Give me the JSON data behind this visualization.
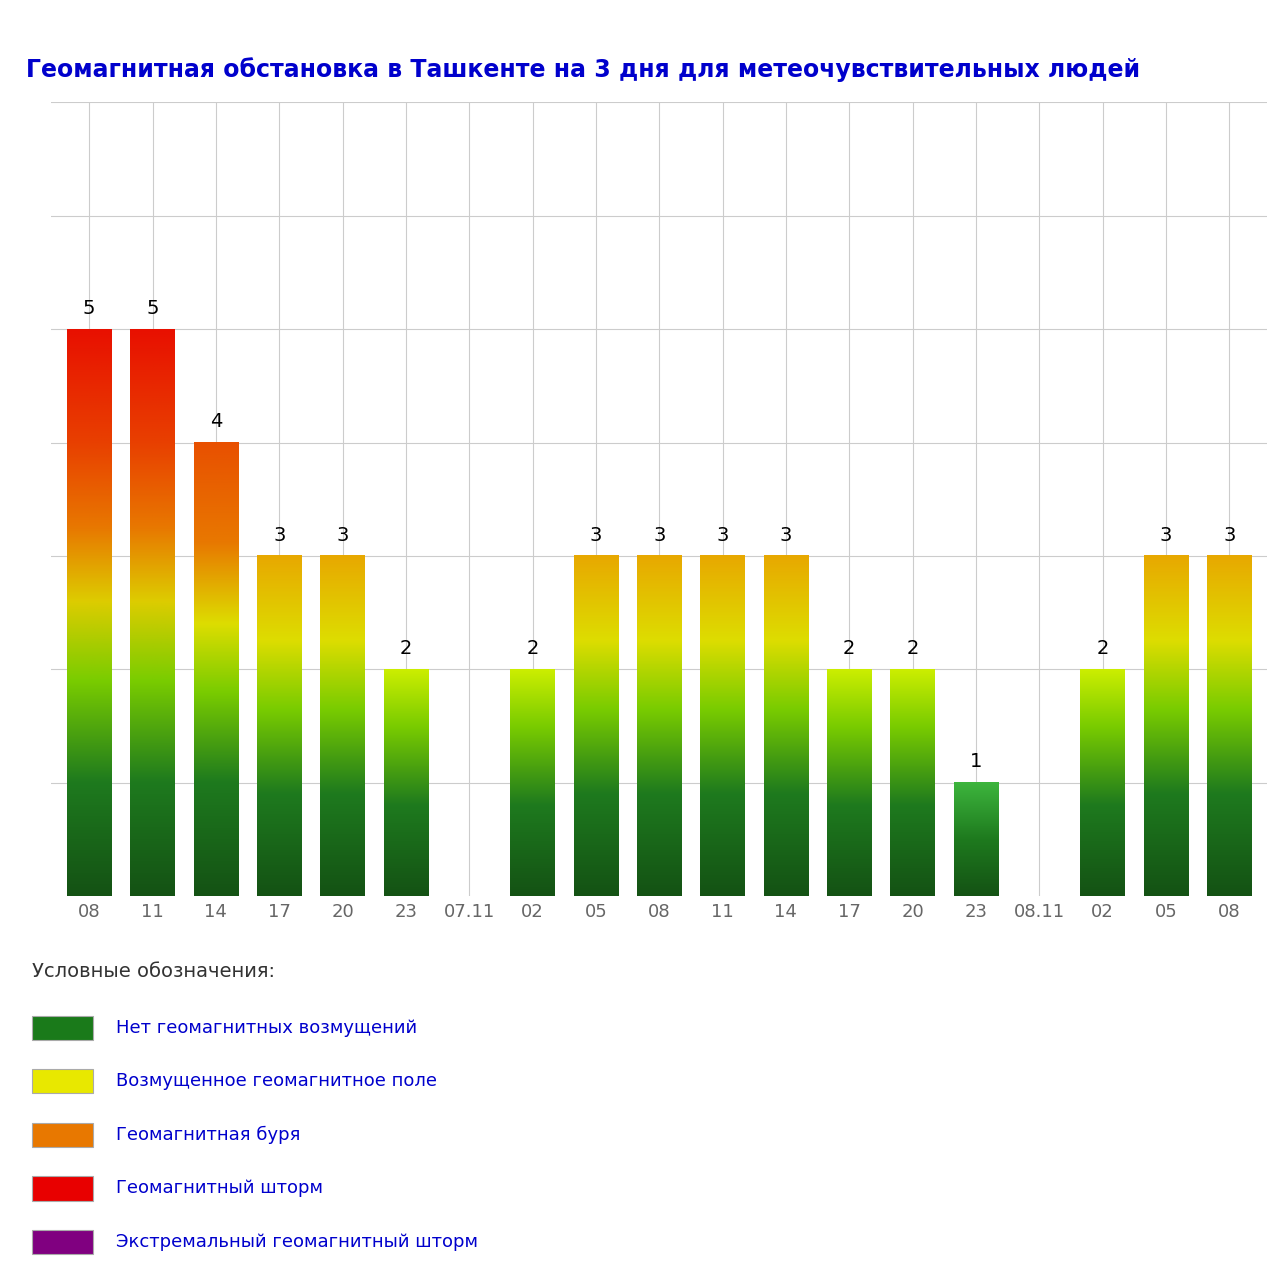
{
  "title": "Геомагнитная обстановка в Ташкенте на 3 дня для метеочувствительных людей",
  "title_color": "#0000CC",
  "background_color": "#ffffff",
  "grid_color": "#cccccc",
  "bar_labels": [
    "08",
    "11",
    "14",
    "17",
    "20",
    "23",
    "07.11",
    "02",
    "05",
    "08",
    "11",
    "14",
    "17",
    "20",
    "23",
    "08.11",
    "02",
    "05",
    "08"
  ],
  "bar_values": [
    5,
    5,
    4,
    3,
    3,
    2,
    0,
    2,
    3,
    3,
    3,
    3,
    2,
    2,
    1,
    0,
    2,
    3,
    3
  ],
  "ylim": [
    0,
    7
  ],
  "yticks": [
    1,
    2,
    3,
    4,
    5,
    6,
    7
  ],
  "value_label_color": "#000000",
  "value_label_fontsize": 14,
  "xlabel_fontsize": 13,
  "bar_width": 0.7,
  "date_separator_indices": [
    6,
    15
  ],
  "legend_items": [
    {
      "color": "#1a7a1a",
      "label": "Нет геомагнитных возмущений"
    },
    {
      "color": "#e8e800",
      "label": "Возмущенное геомагнитное поле"
    },
    {
      "color": "#e87800",
      "label": "Геомагнитная буря"
    },
    {
      "color": "#e80000",
      "label": "Геомагнитный шторм"
    },
    {
      "color": "#800080",
      "label": "Экстремальный геомагнитный шторм"
    }
  ],
  "legend_title": "Условные обозначения:",
  "legend_text_color": "#0000CC"
}
